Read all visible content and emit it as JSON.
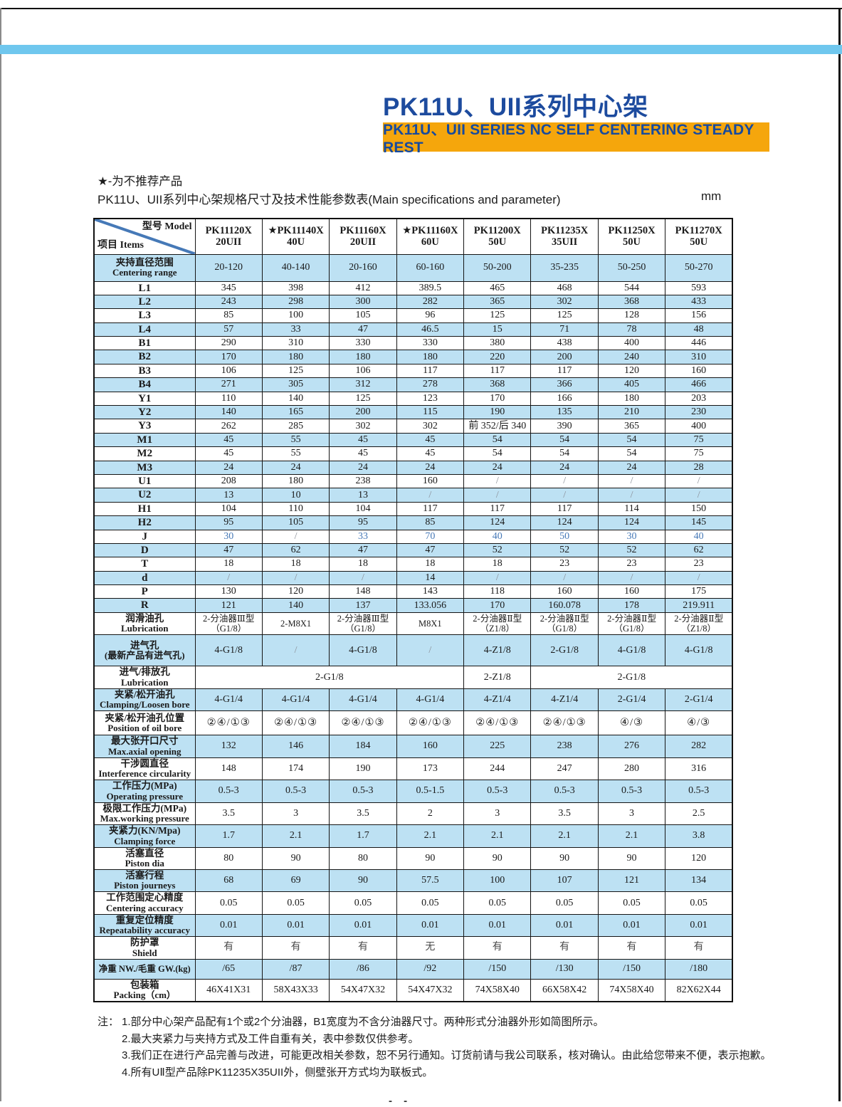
{
  "colors": {
    "accent_bar_blue": "#6fc7ee",
    "title_blue": "#1d4b9e",
    "banner_orange": "#f5a60c",
    "banner_text_blue": "#164a9e",
    "row_shade_blue": "#bde1f3",
    "j_row_text_blue": "#4679b7"
  },
  "header": {
    "title_cn": "PK11U、UII系列中心架",
    "banner_en": "PK11U、UII SERIES NC SELF CENTERING STEADY REST"
  },
  "intro": {
    "star_note": "★-为不推荐产品",
    "table_caption": "PK11U、UII系列中心架规格尺寸及技术性能参数表(Main specifications and parameter)",
    "unit": "mm"
  },
  "table": {
    "corner": {
      "top_right": "型号 Model",
      "bottom_left": "项目 Items"
    },
    "models": [
      {
        "line1": "PK11120X",
        "line2": "20UII"
      },
      {
        "line1": "★PK11140X",
        "line2": "40U"
      },
      {
        "line1": "PK11160X",
        "line2": "20UII"
      },
      {
        "line1": "★PK11160X",
        "line2": "60U"
      },
      {
        "line1": "PK11200X",
        "line2": "50U"
      },
      {
        "line1": "PK11235X",
        "line2": "35UII"
      },
      {
        "line1": "PK11250X",
        "line2": "50U"
      },
      {
        "line1": "PK11270X",
        "line2": "50U"
      }
    ],
    "rows": [
      {
        "label": [
          "夹持直径范围",
          "Centering range"
        ],
        "shaded": true,
        "h": "h-range",
        "values": [
          "20-120",
          "40-140",
          "20-160",
          "60-160",
          "50-200",
          "35-235",
          "50-250",
          "50-270"
        ]
      },
      {
        "label": [
          "L1"
        ],
        "h": "h-single",
        "values": [
          "345",
          "398",
          "412",
          "389.5",
          "465",
          "468",
          "544",
          "593"
        ]
      },
      {
        "label": [
          "L2"
        ],
        "shaded": true,
        "h": "h-single",
        "values": [
          "243",
          "298",
          "300",
          "282",
          "365",
          "302",
          "368",
          "433"
        ]
      },
      {
        "label": [
          "L3"
        ],
        "h": "h-single",
        "values": [
          "85",
          "100",
          "105",
          "96",
          "125",
          "125",
          "128",
          "156"
        ]
      },
      {
        "label": [
          "L4"
        ],
        "shaded": true,
        "h": "h-single",
        "values": [
          "57",
          "33",
          "47",
          "46.5",
          "15",
          "71",
          "78",
          "48"
        ]
      },
      {
        "label": [
          "B1"
        ],
        "h": "h-single",
        "values": [
          "290",
          "310",
          "330",
          "330",
          "380",
          "438",
          "400",
          "446"
        ]
      },
      {
        "label": [
          "B2"
        ],
        "shaded": true,
        "h": "h-single",
        "values": [
          "170",
          "180",
          "180",
          "180",
          "220",
          "200",
          "240",
          "310"
        ]
      },
      {
        "label": [
          "B3"
        ],
        "h": "h-single",
        "values": [
          "106",
          "125",
          "106",
          "117",
          "117",
          "117",
          "120",
          "160"
        ]
      },
      {
        "label": [
          "B4"
        ],
        "shaded": true,
        "h": "h-single",
        "values": [
          "271",
          "305",
          "312",
          "278",
          "368",
          "366",
          "405",
          "466"
        ]
      },
      {
        "label": [
          "Y1"
        ],
        "h": "h-single",
        "values": [
          "110",
          "140",
          "125",
          "123",
          "170",
          "166",
          "180",
          "203"
        ]
      },
      {
        "label": [
          "Y2"
        ],
        "shaded": true,
        "h": "h-single",
        "values": [
          "140",
          "165",
          "200",
          "115",
          "190",
          "135",
          "210",
          "230"
        ]
      },
      {
        "label": [
          "Y3"
        ],
        "h": "h-single",
        "values": [
          "262",
          "285",
          "302",
          "302",
          "前 352/后 340",
          "390",
          "365",
          "400"
        ]
      },
      {
        "label": [
          "M1"
        ],
        "shaded": true,
        "h": "h-single",
        "values": [
          "45",
          "55",
          "45",
          "45",
          "54",
          "54",
          "54",
          "75"
        ]
      },
      {
        "label": [
          "M2"
        ],
        "h": "h-single",
        "values": [
          "45",
          "55",
          "45",
          "45",
          "54",
          "54",
          "54",
          "75"
        ]
      },
      {
        "label": [
          "M3"
        ],
        "shaded": true,
        "h": "h-single",
        "values": [
          "24",
          "24",
          "24",
          "24",
          "24",
          "24",
          "24",
          "28"
        ]
      },
      {
        "label": [
          "U1"
        ],
        "h": "h-single",
        "values": [
          "208",
          "180",
          "238",
          "160",
          "/",
          "/",
          "/",
          "/"
        ]
      },
      {
        "label": [
          "U2"
        ],
        "shaded": true,
        "h": "h-single",
        "values": [
          "13",
          "10",
          "13",
          "/",
          "/",
          "/",
          "/",
          "/"
        ]
      },
      {
        "label": [
          "H1"
        ],
        "h": "h-single",
        "values": [
          "104",
          "110",
          "104",
          "117",
          "117",
          "117",
          "114",
          "150"
        ]
      },
      {
        "label": [
          "H2"
        ],
        "shaded": true,
        "h": "h-single",
        "values": [
          "95",
          "105",
          "95",
          "85",
          "124",
          "124",
          "124",
          "145"
        ]
      },
      {
        "label": [
          "J"
        ],
        "h": "h-single",
        "blue_text": true,
        "values": [
          "30",
          "/",
          "33",
          "70",
          "40",
          "50",
          "30",
          "40"
        ]
      },
      {
        "label": [
          "D"
        ],
        "shaded": true,
        "h": "h-single",
        "values": [
          "47",
          "62",
          "47",
          "47",
          "52",
          "52",
          "52",
          "62"
        ]
      },
      {
        "label": [
          "T"
        ],
        "h": "h-single",
        "values": [
          "18",
          "18",
          "18",
          "18",
          "18",
          "23",
          "23",
          "23"
        ]
      },
      {
        "label": [
          "d"
        ],
        "shaded": true,
        "h": "h-single",
        "values": [
          "/",
          "/",
          "/",
          "14",
          "/",
          "/",
          "/",
          "/"
        ]
      },
      {
        "label": [
          "P"
        ],
        "h": "h-single",
        "values": [
          "130",
          "120",
          "148",
          "143",
          "118",
          "160",
          "160",
          "175"
        ]
      },
      {
        "label": [
          "R"
        ],
        "shaded": true,
        "h": "h-single",
        "values": [
          "121",
          "140",
          "137",
          "133.056",
          "170",
          "160.078",
          "178",
          "219.911"
        ]
      },
      {
        "label": [
          "润滑油孔",
          "Lubrication"
        ],
        "h": "h-double",
        "small": true,
        "values": [
          [
            "2-分油器Ⅲ型",
            "（G1/8）"
          ],
          "2-M8X1",
          [
            "2-分油器Ⅲ型",
            "（G1/8）"
          ],
          "M8X1",
          [
            "2-分油器Ⅱ型",
            "（Z1/8）"
          ],
          [
            "2-分油器Ⅱ型",
            "（G1/8）"
          ],
          [
            "2-分油器Ⅱ型",
            "（G1/8）"
          ],
          [
            "2-分油器Ⅱ型",
            "（Z1/8）"
          ]
        ]
      },
      {
        "label": [
          "进气孔",
          "(最新产品有进气孔)"
        ],
        "shaded": true,
        "h": "h-triple",
        "values": [
          "4-G1/8",
          "/",
          "4-G1/8",
          "/",
          "4-Z1/8",
          "2-G1/8",
          "4-G1/8",
          "4-G1/8"
        ]
      },
      {
        "label": [
          "进气/排放孔",
          "Lubrication"
        ],
        "h": "h-double",
        "merged": [
          {
            "text": "2-G1/8",
            "span": 4
          },
          {
            "text": "2-Z1/8",
            "span": 1
          },
          {
            "text": "2-G1/8",
            "span": 3
          }
        ]
      },
      {
        "label": [
          "夹紧/松开油孔",
          "Clamping/Loosen bore"
        ],
        "shaded": true,
        "h": "h-double",
        "values": [
          "4-G1/4",
          "4-G1/4",
          "4-G1/4",
          "4-G1/4",
          "4-Z1/4",
          "4-Z1/4",
          "2-G1/4",
          "2-G1/4"
        ]
      },
      {
        "label": [
          "夹紧/松开油孔位置",
          "Position of oil bore"
        ],
        "h": "h-pos",
        "symbol": true,
        "values": [
          "②④/①③",
          "②④/①③",
          "②④/①③",
          "②④/①③",
          "②④/①③",
          "②④/①③",
          "④/③",
          "④/③"
        ]
      },
      {
        "label": [
          "最大张开口尺寸",
          "Max.axial opening"
        ],
        "shaded": true,
        "h": "h-double",
        "values": [
          "132",
          "146",
          "184",
          "160",
          "225",
          "238",
          "276",
          "282"
        ]
      },
      {
        "label": [
          "干涉圆直径",
          "Interference circularity"
        ],
        "h": "h-double",
        "values": [
          "148",
          "174",
          "190",
          "173",
          "244",
          "247",
          "280",
          "316"
        ]
      },
      {
        "label": [
          "工作压力(MPa)",
          "Operating pressure"
        ],
        "shaded": true,
        "h": "h-double",
        "values": [
          "0.5-3",
          "0.5-3",
          "0.5-3",
          "0.5-1.5",
          "0.5-3",
          "0.5-3",
          "0.5-3",
          "0.5-3"
        ]
      },
      {
        "label": [
          "极限工作压力(MPa)",
          "Max.working pressure"
        ],
        "h": "h-double",
        "values": [
          "3.5",
          "3",
          "3.5",
          "2",
          "3",
          "3.5",
          "3",
          "2.5"
        ]
      },
      {
        "label": [
          "夹紧力(KN/Mpa)",
          "Clamping force"
        ],
        "shaded": true,
        "h": "h-double",
        "values": [
          "1.7",
          "2.1",
          "1.7",
          "2.1",
          "2.1",
          "2.1",
          "2.1",
          "3.8"
        ]
      },
      {
        "label": [
          "活塞直径",
          "Piston dia"
        ],
        "h": "h-double",
        "values": [
          "80",
          "90",
          "80",
          "90",
          "90",
          "90",
          "90",
          "120"
        ]
      },
      {
        "label": [
          "活塞行程",
          "Piston journeys"
        ],
        "shaded": true,
        "h": "h-double",
        "values": [
          "68",
          "69",
          "90",
          "57.5",
          "100",
          "107",
          "121",
          "134"
        ]
      },
      {
        "label": [
          "工作范围定心精度",
          "Centering accuracy"
        ],
        "h": "h-double",
        "values": [
          "0.05",
          "0.05",
          "0.05",
          "0.05",
          "0.05",
          "0.05",
          "0.05",
          "0.05"
        ]
      },
      {
        "label": [
          "重复定位精度",
          "Repeatability accuracy"
        ],
        "shaded": true,
        "h": "h-double",
        "values": [
          "0.01",
          "0.01",
          "0.01",
          "0.01",
          "0.01",
          "0.01",
          "0.01",
          "0.01"
        ]
      },
      {
        "label": [
          "防护罩",
          "Shield"
        ],
        "h": "h-shield",
        "muted": true,
        "values": [
          "有",
          "有",
          "有",
          "无",
          "有",
          "有",
          "有",
          "有"
        ]
      },
      {
        "label": [
          "净重 NW./毛重 GW.(kg)"
        ],
        "shaded": true,
        "h": "h-nw",
        "label_nowrap": true,
        "values": [
          "/65",
          "/87",
          "/86",
          "/92",
          "/150",
          "/130",
          "/150",
          "/180"
        ]
      },
      {
        "label": [
          "包装箱",
          "Packing（cm）"
        ],
        "h": "h-pack",
        "values": [
          "46X41X31",
          "58X43X33",
          "54X47X32",
          "54X47X32",
          "74X58X40",
          "66X58X42",
          "74X58X40",
          "82X62X44"
        ]
      }
    ]
  },
  "notes": {
    "prefix": "注：",
    "items": [
      "1.部分中心架产品配有1个或2个分油器，B1宽度为不含分油器尺寸。两种形式分油器外形如简图所示。",
      "2.最大夹紧力与夹持方式及工件自重有关，表中参数仅供参考。",
      "3.我们正在进行产品完善与改进，可能更改相关参数，恕不另行通知。订货前请与我公司联系，核对确认。由此给您带来不便，表示抱歉。",
      "4.所有UⅡ型产品除PK11235X35UII外，侧壁张开方式均为联板式。"
    ]
  },
  "footer": {
    "page_dash": "- -"
  }
}
